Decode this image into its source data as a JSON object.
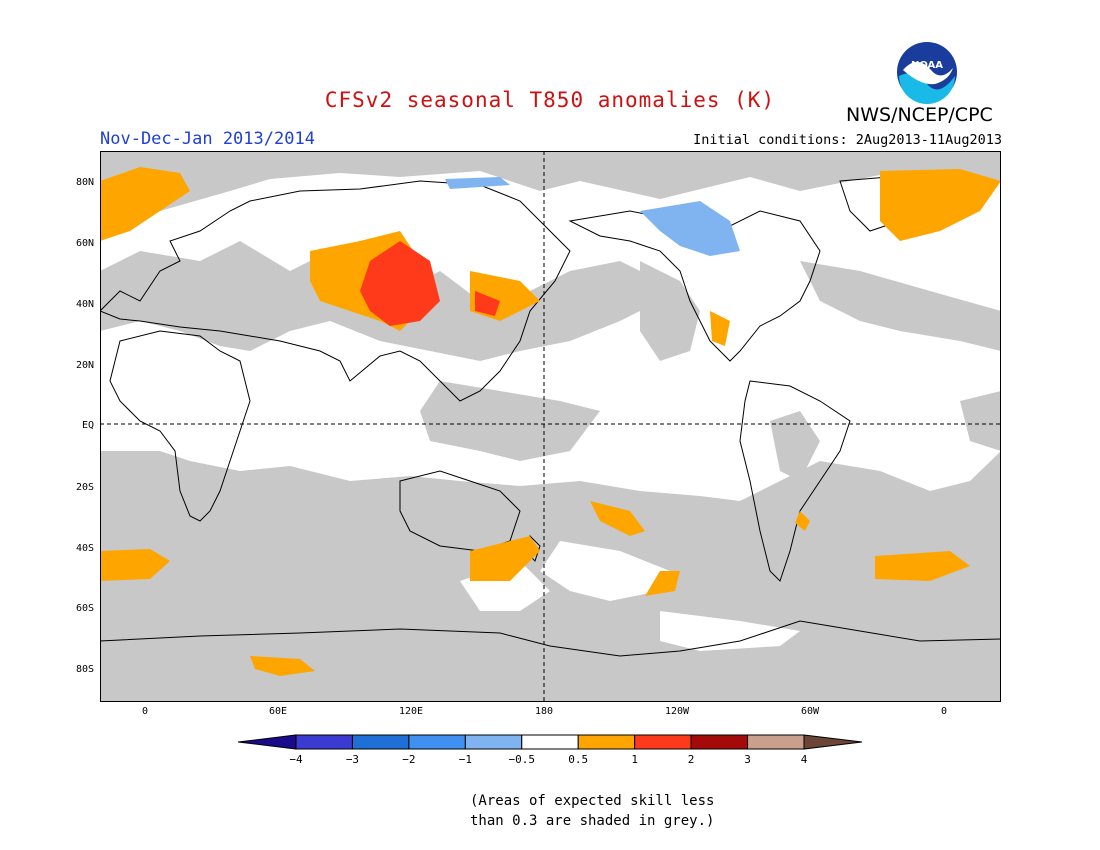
{
  "header": {
    "title": "CFSv2 seasonal T850 anomalies (K)",
    "agency": "NWS/NCEP/CPC",
    "logo_text": "NOAA",
    "period": "Nov-Dec-Jan 2013/2014",
    "initial_conditions": "Initial conditions: 2Aug2013-11Aug2013"
  },
  "map": {
    "lat_ticks": [
      "80N",
      "60N",
      "40N",
      "20N",
      "EQ",
      "20S",
      "40S",
      "60S",
      "80S"
    ],
    "lon_ticks": [
      "0",
      "60E",
      "120E",
      "180",
      "120W",
      "60W",
      "0"
    ],
    "colors": {
      "skill_grey": "#c8c8c8",
      "land_outline": "#000000",
      "warm_0_5_to_1": "#ffa500",
      "warm_1_to_2": "#ff3a1a",
      "cool_neg1_to_neg0_5": "#80b4f0"
    }
  },
  "legend": {
    "labels": [
      "−4",
      "−3",
      "−2",
      "−1",
      "−0.5",
      "0.5",
      "1",
      "2",
      "3",
      "4"
    ],
    "colors": [
      "#1a0a8c",
      "#3b3bd1",
      "#1e6fd6",
      "#3f90f0",
      "#80b4f0",
      "#ffffff",
      "#ffa500",
      "#ff3a1a",
      "#a50a0a",
      "#c8a08c",
      "#6b4636"
    ]
  },
  "note": {
    "line1": "(Areas of expected skill less",
    "line2": "than 0.3 are shaded in grey.)"
  }
}
